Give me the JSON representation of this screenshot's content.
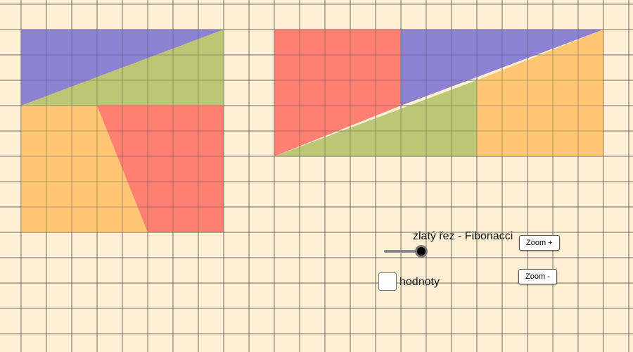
{
  "colors": {
    "background": "#ffefd5",
    "grid": "#5a5a5a",
    "blue": "#8377d3",
    "green": "#b5c36b",
    "orange": "#ffc36a",
    "red": "#ff7568"
  },
  "controls": {
    "slider_caption": "zlatý řez - Fibonacci",
    "slider_value": 1.0,
    "checkbox_label": "hodnoty",
    "checkbox_checked": false,
    "zoom_in_label": "Zoom +",
    "zoom_out_label": "Zoom -"
  },
  "figure_left": {
    "description_note": "8x8 square cut into two triangles (top) and two trapezoids (bottom)",
    "pieces": [
      {
        "shape": "triangle",
        "color": "blue",
        "vertices": [
          [
            0,
            0
          ],
          [
            8,
            0
          ],
          [
            0,
            3
          ]
        ]
      },
      {
        "shape": "triangle",
        "color": "green",
        "vertices": [
          [
            8,
            0
          ],
          [
            8,
            3
          ],
          [
            0,
            3
          ]
        ]
      },
      {
        "shape": "trapezoid",
        "color": "orange",
        "vertices": [
          [
            0,
            3
          ],
          [
            3,
            3
          ],
          [
            5,
            8
          ],
          [
            0,
            8
          ]
        ]
      },
      {
        "shape": "trapezoid",
        "color": "red",
        "vertices": [
          [
            3,
            3
          ],
          [
            8,
            3
          ],
          [
            8,
            8
          ],
          [
            5,
            8
          ]
        ]
      }
    ]
  },
  "figure_right": {
    "description_note": "13x5 rectangle rearranged from the same pieces",
    "pieces": [
      {
        "shape": "trapezoid",
        "color": "red",
        "vertices": [
          [
            0,
            0
          ],
          [
            5,
            0
          ],
          [
            5,
            3
          ],
          [
            0,
            5
          ]
        ]
      },
      {
        "shape": "triangle",
        "color": "blue",
        "vertices": [
          [
            5,
            0
          ],
          [
            13,
            0
          ],
          [
            5,
            3
          ]
        ]
      },
      {
        "shape": "triangle",
        "color": "green",
        "vertices": [
          [
            0,
            5
          ],
          [
            8,
            2
          ],
          [
            8,
            5
          ]
        ]
      },
      {
        "shape": "trapezoid",
        "color": "orange",
        "vertices": [
          [
            8,
            2
          ],
          [
            13,
            0
          ],
          [
            13,
            5
          ],
          [
            8,
            5
          ]
        ]
      }
    ]
  }
}
